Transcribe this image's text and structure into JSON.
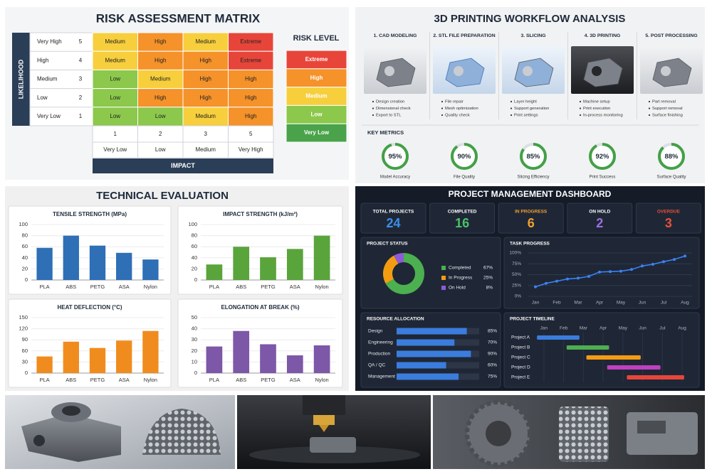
{
  "risk_matrix": {
    "title": "RISK ASSESSMENT MATRIX",
    "y_axis_label": "LIKELIHOOD",
    "x_axis_label": "IMPACT",
    "rows": [
      {
        "label": "Very High",
        "score": 5,
        "cells": [
          "Medium",
          "High",
          "Medium",
          "Extreme"
        ]
      },
      {
        "label": "High",
        "score": 4,
        "cells": [
          "Medium",
          "High",
          "High",
          "Extreme"
        ]
      },
      {
        "label": "Medium",
        "score": 3,
        "cells": [
          "Low",
          "Medium",
          "High",
          "High"
        ]
      },
      {
        "label": "Low",
        "score": 2,
        "cells": [
          "Low",
          "High",
          "High",
          "High"
        ]
      },
      {
        "label": "Very Low",
        "score": 1,
        "cells": [
          "Low",
          "Low",
          "Medium",
          "High"
        ]
      }
    ],
    "columns": [
      {
        "score": 1,
        "label": "Very Low"
      },
      {
        "score": 2,
        "label": "Low"
      },
      {
        "score": 3,
        "label": "Medium"
      },
      {
        "score": 5,
        "label": "Very High"
      }
    ],
    "legend_title": "RISK LEVEL",
    "levels": [
      {
        "name": "Extreme",
        "color": "#e8453a"
      },
      {
        "name": "High",
        "color": "#f5922a"
      },
      {
        "name": "Medium",
        "color": "#f7cf3d"
      },
      {
        "name": "Low",
        "color": "#8cc84b"
      },
      {
        "name": "Very Low",
        "color": "#4aa34a"
      }
    ]
  },
  "workflow": {
    "title": "3D PRINTING WORKFLOW ANALYSIS",
    "steps": [
      {
        "title": "1. CAD MODELING",
        "bullets": [
          "Design creation",
          "Dimensional check",
          "Export to STL"
        ]
      },
      {
        "title": "2. STL FILE PREPARATION",
        "bullets": [
          "File repair",
          "Mesh optimization",
          "Quality check"
        ]
      },
      {
        "title": "3. SLICING",
        "bullets": [
          "Layer height",
          "Support generation",
          "Print settings"
        ]
      },
      {
        "title": "4. 3D PRINTING",
        "bullets": [
          "Machine setup",
          "Print execution",
          "In-process monitoring"
        ]
      },
      {
        "title": "5. POST PROCESSING",
        "bullets": [
          "Part removal",
          "Support removal",
          "Surface finishing"
        ]
      }
    ],
    "metrics_title": "KEY METRICS",
    "color": "#43a047",
    "metrics": [
      {
        "label": "Model Accuracy",
        "value": 95,
        "value_label": "95%"
      },
      {
        "label": "File Quality",
        "value": 90,
        "value_label": "90%"
      },
      {
        "label": "Slicing Efficiency",
        "value": 85,
        "value_label": "85%"
      },
      {
        "label": "Print Success",
        "value": 92,
        "value_label": "92%"
      },
      {
        "label": "Surface Quality",
        "value": 88,
        "value_label": "88%"
      }
    ]
  },
  "technical_evaluation": {
    "title": "TECHNICAL EVALUATION"
  },
  "dashboard": {
    "title": "PROJECT MANAGEMENT DASHBOARD",
    "kpis": [
      {
        "label": "TOTAL PROJECTS",
        "value": 24,
        "color": "#3b8fe8",
        "label_color": "#ffffff"
      },
      {
        "label": "COMPLETED",
        "value": 16,
        "color": "#4cc26a",
        "label_color": "#ffffff"
      },
      {
        "label": "IN PROGRESS",
        "value": 6,
        "color": "#f0a030",
        "label_color": "#f0a030"
      },
      {
        "label": "ON HOLD",
        "value": 2,
        "color": "#9b6fe0",
        "label_color": "#ffffff"
      },
      {
        "label": "OVERDUE",
        "value": 3,
        "color": "#e8503a",
        "label_color": "#e8503a"
      }
    ]
  },
  "chart_data": [
    {
      "type": "bar",
      "title": "TENSILE STRENGTH (MPa)",
      "categories": [
        "PLA",
        "ABS",
        "PETG",
        "ASA",
        "Nylon"
      ],
      "values": [
        58,
        80,
        62,
        49,
        37
      ],
      "color": "#2e6fb5",
      "ylim": [
        0,
        100
      ],
      "yticks": [
        0,
        20,
        40,
        60,
        80,
        100
      ],
      "grid": true
    },
    {
      "type": "bar",
      "title": "IMPACT STRENGTH (kJ/m²)",
      "categories": [
        "PLA",
        "ABS",
        "PETG",
        "ASA",
        "Nylon"
      ],
      "values": [
        28,
        60,
        41,
        56,
        80
      ],
      "color": "#5aa43c",
      "ylim": [
        0,
        100
      ],
      "yticks": [
        0,
        20,
        40,
        60,
        80,
        100
      ],
      "grid": true
    },
    {
      "type": "bar",
      "title": "HEAT DEFLECTION (°C)",
      "categories": [
        "PLA",
        "ABS",
        "PETG",
        "ASA",
        "Nylon"
      ],
      "values": [
        45,
        85,
        68,
        88,
        114
      ],
      "color": "#f08c1e",
      "ylim": [
        0,
        150
      ],
      "yticks": [
        0,
        30,
        60,
        90,
        120,
        150
      ],
      "grid": true
    },
    {
      "type": "bar",
      "title": "ELONGATION AT BREAK (%)",
      "categories": [
        "PLA",
        "ABS",
        "PETG",
        "ASA",
        "Nylon"
      ],
      "values": [
        24,
        38,
        26,
        16,
        25
      ],
      "color": "#7d57a8",
      "ylim": [
        0,
        50
      ],
      "yticks": [
        0,
        10,
        20,
        30,
        40,
        50
      ],
      "grid": true
    },
    {
      "type": "pie",
      "title": "PROJECT STATUS",
      "categories": [
        "Completed",
        "In Progress",
        "On Hold"
      ],
      "values": [
        67,
        25,
        8
      ],
      "value_labels": [
        "67%",
        "25%",
        "8%"
      ],
      "colors": [
        "#4caf50",
        "#f39c12",
        "#8e5bd6"
      ]
    },
    {
      "type": "line",
      "title": "TASK PROGRESS",
      "categories": [
        "Jan",
        null,
        "Feb",
        null,
        "Mar",
        null,
        "Apr",
        null,
        "May",
        null,
        "Jun",
        null,
        "Jul",
        null,
        "Aug"
      ],
      "values": [
        22,
        30,
        35,
        40,
        42,
        46,
        56,
        57,
        58,
        62,
        70,
        74,
        80,
        85,
        93
      ],
      "color": "#3b82f6",
      "ylim": [
        0,
        100
      ],
      "yticks": [
        {
          "value": 0,
          "label": "0%"
        },
        {
          "value": 25,
          "label": "25%"
        },
        {
          "value": 50,
          "label": "50%"
        },
        {
          "value": 75,
          "label": "75%"
        },
        {
          "value": 100,
          "label": "100%"
        }
      ],
      "grid": true
    },
    {
      "type": "bar",
      "orientation": "horizontal",
      "title": "RESOURCE ALLOCATION",
      "categories": [
        "Design",
        "Engineering",
        "Production",
        "QA / QC",
        "Management"
      ],
      "values": [
        85,
        70,
        90,
        60,
        75
      ],
      "value_labels": [
        "85%",
        "70%",
        "90%",
        "60%",
        "75%"
      ],
      "color": "#3b7ddd",
      "xlim": [
        0,
        100
      ]
    },
    {
      "type": "gantt",
      "title": "PROJECT TIMELINE",
      "categories": [
        "Jan",
        "Feb",
        "Mar",
        "Apr",
        "May",
        "Jun",
        "Jul",
        "Aug"
      ],
      "xlim": [
        -0.5,
        7.5
      ],
      "tasks": [
        {
          "name": "Project A",
          "start": -0.35,
          "end": 1.8,
          "color": "#3b7ddd"
        },
        {
          "name": "Project B",
          "start": 1.15,
          "end": 3.3,
          "color": "#4caf50"
        },
        {
          "name": "Project C",
          "start": 2.15,
          "end": 4.9,
          "color": "#f39c12"
        },
        {
          "name": "Project D",
          "start": 3.2,
          "end": 5.9,
          "color": "#c040c0"
        },
        {
          "name": "Project E",
          "start": 4.2,
          "end": 7.1,
          "color": "#e8453a"
        }
      ]
    }
  ]
}
